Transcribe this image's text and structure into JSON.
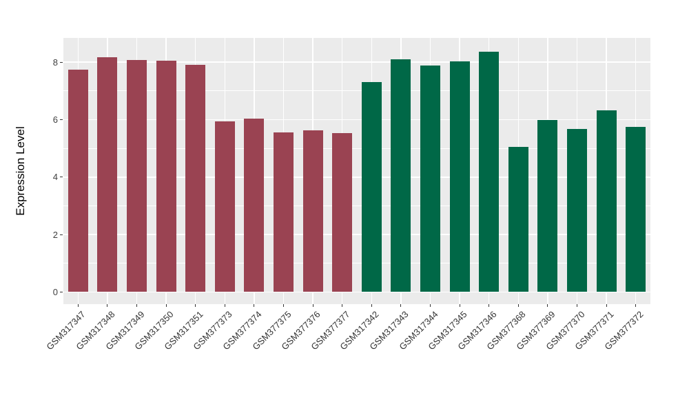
{
  "chart_data": {
    "type": "bar",
    "title": "",
    "xlabel": "",
    "ylabel": "Expression Level",
    "ylim": [
      -0.42,
      8.84
    ],
    "yticks": [
      0,
      2,
      4,
      6,
      8
    ],
    "minor_gridlines": [
      1,
      3,
      5,
      7
    ],
    "grid": "on",
    "legend": "none",
    "categories": [
      "GSM317347",
      "GSM317348",
      "GSM317349",
      "GSM317350",
      "GSM317351",
      "GSM377373",
      "GSM377374",
      "GSM377375",
      "GSM377376",
      "GSM377377",
      "GSM317342",
      "GSM317343",
      "GSM317344",
      "GSM317345",
      "GSM317346",
      "GSM377368",
      "GSM377369",
      "GSM377370",
      "GSM377371",
      "GSM377372"
    ],
    "values": [
      7.74,
      8.17,
      8.07,
      8.05,
      7.91,
      5.93,
      6.03,
      5.55,
      5.63,
      5.52,
      7.3,
      8.09,
      7.89,
      8.02,
      8.37,
      5.06,
      5.98,
      5.67,
      6.31,
      5.74
    ],
    "bar_groups": [
      "group_a",
      "group_a",
      "group_a",
      "group_a",
      "group_a",
      "group_a",
      "group_a",
      "group_a",
      "group_a",
      "group_a",
      "group_b",
      "group_b",
      "group_b",
      "group_b",
      "group_b",
      "group_b",
      "group_b",
      "group_b",
      "group_b",
      "group_b"
    ],
    "group_colors": {
      "group_a": "#9A4352",
      "group_b": "#006847"
    },
    "panel_background": "#EBEBEB",
    "gridline_color": "#FFFFFF",
    "axis_text_color": "#404040",
    "tick_mark_color": "#333333"
  }
}
